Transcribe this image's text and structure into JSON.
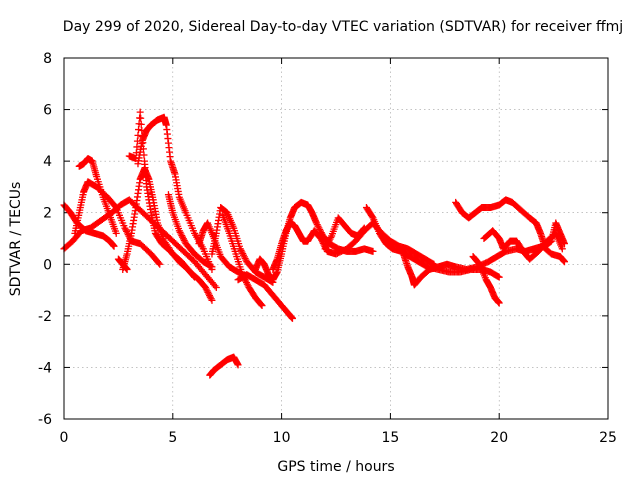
{
  "chart_data": {
    "type": "scatter",
    "title": "Day 299 of 2020, Sidereal Day-to-day VTEC variation (SDTVAR) for receiver ffmj",
    "xlabel": "GPS time / hours",
    "ylabel": "SDTVAR / TECUs",
    "xlim": [
      0,
      25
    ],
    "ylim": [
      -6,
      8
    ],
    "xticks": [
      0,
      5,
      10,
      15,
      20,
      25
    ],
    "yticks": [
      -6,
      -4,
      -2,
      0,
      2,
      4,
      6,
      8
    ],
    "xtick_labels": [
      "0",
      "5",
      "10",
      "15",
      "20",
      "25"
    ],
    "ytick_labels": [
      "-6",
      "-4",
      "-2",
      "0",
      "2",
      "4",
      "6",
      "8"
    ],
    "grid": true,
    "marker": "plus",
    "color": "#ff0000",
    "series": [
      {
        "name": "s1",
        "points": [
          [
            0.0,
            2.3
          ],
          [
            0.3,
            2.0
          ],
          [
            0.6,
            1.6
          ],
          [
            1.0,
            1.3
          ],
          [
            1.4,
            1.2
          ],
          [
            1.8,
            1.1
          ],
          [
            2.1,
            0.9
          ],
          [
            2.3,
            0.7
          ]
        ]
      },
      {
        "name": "s2",
        "points": [
          [
            0.0,
            0.6
          ],
          [
            0.4,
            0.9
          ],
          [
            0.8,
            1.3
          ],
          [
            1.2,
            1.4
          ],
          [
            1.7,
            1.7
          ],
          [
            2.2,
            2.0
          ],
          [
            2.6,
            2.3
          ],
          [
            3.0,
            2.5
          ],
          [
            3.5,
            2.1
          ],
          [
            4.0,
            1.7
          ],
          [
            4.5,
            1.3
          ],
          [
            5.0,
            0.9
          ],
          [
            5.5,
            0.5
          ],
          [
            6.0,
            0.1
          ],
          [
            6.5,
            -0.4
          ],
          [
            7.0,
            -0.9
          ]
        ]
      },
      {
        "name": "s3",
        "points": [
          [
            0.5,
            1.2
          ],
          [
            0.7,
            2.0
          ],
          [
            0.9,
            2.8
          ],
          [
            1.1,
            3.2
          ],
          [
            1.5,
            3.0
          ],
          [
            2.0,
            2.6
          ],
          [
            2.4,
            2.2
          ],
          [
            2.8,
            1.4
          ],
          [
            3.1,
            0.9
          ],
          [
            3.5,
            0.8
          ],
          [
            4.0,
            0.4
          ],
          [
            4.4,
            0.0
          ]
        ]
      },
      {
        "name": "s4",
        "points": [
          [
            0.7,
            3.8
          ],
          [
            0.9,
            3.9
          ],
          [
            1.1,
            4.1
          ],
          [
            1.3,
            4.0
          ],
          [
            1.5,
            3.4
          ],
          [
            1.8,
            2.6
          ],
          [
            2.1,
            1.9
          ],
          [
            2.4,
            1.2
          ]
        ]
      },
      {
        "name": "s5",
        "points": [
          [
            3.0,
            4.2
          ],
          [
            3.3,
            4.1
          ],
          [
            3.5,
            5.9
          ],
          [
            3.7,
            4.0
          ],
          [
            3.8,
            3.0
          ],
          [
            4.0,
            2.0
          ],
          [
            4.2,
            1.2
          ],
          [
            4.5,
            0.8
          ],
          [
            4.9,
            0.5
          ],
          [
            5.3,
            0.1
          ],
          [
            5.7,
            -0.2
          ],
          [
            6.0,
            -0.5
          ]
        ]
      },
      {
        "name": "s6",
        "points": [
          [
            3.4,
            3.9
          ],
          [
            3.6,
            4.8
          ],
          [
            3.8,
            5.2
          ],
          [
            4.0,
            5.4
          ],
          [
            4.3,
            5.6
          ],
          [
            4.6,
            5.7
          ],
          [
            4.7,
            5.4
          ],
          [
            4.9,
            4.0
          ],
          [
            5.1,
            3.5
          ],
          [
            5.3,
            2.6
          ],
          [
            5.6,
            2.0
          ],
          [
            6.0,
            1.2
          ],
          [
            6.4,
            0.6
          ],
          [
            6.8,
            -0.2
          ]
        ]
      },
      {
        "name": "s7",
        "points": [
          [
            2.7,
            -0.2
          ],
          [
            2.9,
            0.4
          ],
          [
            3.1,
            1.2
          ],
          [
            3.3,
            2.2
          ],
          [
            3.5,
            3.3
          ],
          [
            3.7,
            3.7
          ],
          [
            3.9,
            3.3
          ],
          [
            4.1,
            2.5
          ],
          [
            4.3,
            1.6
          ],
          [
            4.6,
            0.9
          ],
          [
            5.0,
            0.4
          ],
          [
            5.4,
            0.1
          ],
          [
            5.8,
            -0.3
          ],
          [
            6.2,
            -0.6
          ],
          [
            6.5,
            -0.9
          ],
          [
            6.8,
            -1.4
          ]
        ]
      },
      {
        "name": "s8",
        "points": [
          [
            4.8,
            2.7
          ],
          [
            5.0,
            2.0
          ],
          [
            5.3,
            1.3
          ],
          [
            5.6,
            0.8
          ],
          [
            6.0,
            0.4
          ],
          [
            6.4,
            0.1
          ],
          [
            6.8,
            -0.1
          ]
        ]
      },
      {
        "name": "s9",
        "points": [
          [
            6.7,
            -4.3
          ],
          [
            6.9,
            -4.1
          ],
          [
            7.2,
            -3.9
          ],
          [
            7.5,
            -3.7
          ],
          [
            7.8,
            -3.6
          ],
          [
            8.0,
            -3.9
          ]
        ]
      },
      {
        "name": "s10",
        "points": [
          [
            6.8,
            0.4
          ],
          [
            7.0,
            1.2
          ],
          [
            7.2,
            2.2
          ],
          [
            7.5,
            2.0
          ],
          [
            7.8,
            1.4
          ],
          [
            8.1,
            0.6
          ],
          [
            8.4,
            0.1
          ],
          [
            8.8,
            -0.3
          ],
          [
            9.2,
            -0.5
          ],
          [
            9.6,
            -0.7
          ]
        ]
      },
      {
        "name": "s11",
        "points": [
          [
            7.3,
            1.9
          ],
          [
            7.6,
            1.2
          ],
          [
            7.9,
            0.4
          ],
          [
            8.2,
            -0.4
          ],
          [
            8.5,
            -0.9
          ],
          [
            8.8,
            -1.3
          ],
          [
            9.1,
            -1.6
          ]
        ]
      },
      {
        "name": "s12",
        "points": [
          [
            6.2,
            0.8
          ],
          [
            6.4,
            1.3
          ],
          [
            6.6,
            1.6
          ],
          [
            6.9,
            1.0
          ],
          [
            7.2,
            0.3
          ],
          [
            7.6,
            -0.1
          ],
          [
            8.0,
            -0.3
          ],
          [
            8.4,
            -0.5
          ]
        ]
      },
      {
        "name": "s13",
        "points": [
          [
            8.0,
            -0.6
          ],
          [
            8.4,
            -0.4
          ],
          [
            8.8,
            -0.6
          ],
          [
            9.2,
            -0.8
          ],
          [
            9.6,
            -1.2
          ],
          [
            10.0,
            -1.6
          ],
          [
            10.3,
            -1.9
          ],
          [
            10.5,
            -2.1
          ]
        ]
      },
      {
        "name": "s14",
        "points": [
          [
            8.8,
            -0.2
          ],
          [
            9.0,
            0.2
          ],
          [
            9.2,
            0.0
          ],
          [
            9.4,
            -0.4
          ],
          [
            9.6,
            -0.6
          ],
          [
            9.8,
            -0.3
          ],
          [
            10.0,
            0.4
          ],
          [
            10.2,
            1.2
          ],
          [
            10.4,
            1.8
          ],
          [
            10.6,
            2.2
          ],
          [
            10.9,
            2.4
          ],
          [
            11.2,
            2.3
          ],
          [
            11.4,
            2.0
          ],
          [
            11.6,
            1.6
          ],
          [
            11.9,
            1.1
          ],
          [
            12.2,
            0.8
          ],
          [
            12.6,
            0.6
          ],
          [
            13.0,
            0.5
          ],
          [
            13.4,
            0.5
          ],
          [
            13.8,
            0.6
          ],
          [
            14.2,
            0.5
          ]
        ]
      },
      {
        "name": "s15",
        "points": [
          [
            9.6,
            -0.2
          ],
          [
            9.8,
            0.2
          ],
          [
            10.0,
            0.8
          ],
          [
            10.2,
            1.3
          ],
          [
            10.4,
            1.6
          ],
          [
            10.6,
            1.5
          ],
          [
            10.8,
            1.2
          ],
          [
            11.0,
            0.9
          ],
          [
            11.2,
            0.9
          ],
          [
            11.5,
            1.3
          ],
          [
            11.8,
            1.0
          ],
          [
            12.1,
            0.5
          ],
          [
            12.5,
            0.4
          ],
          [
            13.0,
            0.6
          ],
          [
            13.4,
            0.9
          ],
          [
            13.8,
            1.3
          ],
          [
            14.2,
            1.6
          ],
          [
            14.6,
            1.2
          ],
          [
            15.0,
            0.9
          ],
          [
            15.4,
            0.7
          ],
          [
            15.8,
            0.6
          ],
          [
            16.2,
            0.4
          ],
          [
            16.6,
            0.2
          ],
          [
            17.0,
            0.0
          ]
        ]
      },
      {
        "name": "s16",
        "points": [
          [
            12.0,
            0.6
          ],
          [
            12.3,
            1.1
          ],
          [
            12.6,
            1.8
          ],
          [
            12.9,
            1.5
          ],
          [
            13.2,
            1.2
          ],
          [
            13.5,
            1.1
          ],
          [
            13.8,
            1.4
          ]
        ]
      },
      {
        "name": "s17",
        "points": [
          [
            13.9,
            2.2
          ],
          [
            14.2,
            1.8
          ],
          [
            14.5,
            1.2
          ],
          [
            14.8,
            0.8
          ],
          [
            15.1,
            0.6
          ],
          [
            15.5,
            0.5
          ],
          [
            15.9,
            0.3
          ],
          [
            16.3,
            0.1
          ],
          [
            16.7,
            -0.1
          ],
          [
            17.2,
            -0.2
          ],
          [
            17.7,
            -0.3
          ],
          [
            18.2,
            -0.3
          ],
          [
            18.7,
            -0.2
          ],
          [
            19.2,
            -0.2
          ],
          [
            19.6,
            -0.3
          ],
          [
            20.0,
            -0.5
          ]
        ]
      },
      {
        "name": "s18",
        "points": [
          [
            15.6,
            0.4
          ],
          [
            15.8,
            -0.1
          ],
          [
            16.0,
            -0.5
          ],
          [
            16.1,
            -0.8
          ],
          [
            16.4,
            -0.5
          ],
          [
            16.8,
            -0.2
          ],
          [
            17.2,
            -0.1
          ],
          [
            17.6,
            0.0
          ],
          [
            18.0,
            -0.1
          ],
          [
            18.5,
            -0.2
          ],
          [
            19.0,
            -0.1
          ],
          [
            19.5,
            0.1
          ],
          [
            19.9,
            0.3
          ],
          [
            20.3,
            0.5
          ],
          [
            20.8,
            0.6
          ],
          [
            21.2,
            0.5
          ],
          [
            21.6,
            0.6
          ],
          [
            22.0,
            0.7
          ],
          [
            22.4,
            0.4
          ],
          [
            22.8,
            0.3
          ],
          [
            23.0,
            0.1
          ]
        ]
      },
      {
        "name": "s19",
        "points": [
          [
            18.0,
            2.4
          ],
          [
            18.3,
            2.0
          ],
          [
            18.6,
            1.8
          ],
          [
            18.9,
            2.0
          ],
          [
            19.2,
            2.2
          ],
          [
            19.6,
            2.2
          ],
          [
            20.0,
            2.3
          ],
          [
            20.3,
            2.5
          ],
          [
            20.6,
            2.4
          ],
          [
            21.0,
            2.1
          ],
          [
            21.4,
            1.8
          ],
          [
            21.7,
            1.6
          ],
          [
            21.9,
            1.2
          ],
          [
            22.1,
            0.7
          ],
          [
            22.4,
            0.9
          ],
          [
            22.6,
            1.6
          ],
          [
            22.8,
            1.2
          ],
          [
            23.0,
            0.8
          ]
        ]
      },
      {
        "name": "s20",
        "points": [
          [
            19.3,
            1.0
          ],
          [
            19.7,
            1.3
          ],
          [
            20.0,
            1.0
          ],
          [
            20.2,
            0.6
          ],
          [
            20.5,
            0.9
          ],
          [
            20.8,
            0.9
          ],
          [
            21.1,
            0.5
          ],
          [
            21.4,
            0.2
          ],
          [
            21.8,
            0.5
          ],
          [
            22.2,
            0.9
          ],
          [
            22.6,
            1.2
          ],
          [
            22.9,
            0.6
          ]
        ]
      },
      {
        "name": "s21",
        "points": [
          [
            18.8,
            0.3
          ],
          [
            19.1,
            0.0
          ],
          [
            19.4,
            -0.6
          ],
          [
            19.6,
            -0.9
          ],
          [
            19.8,
            -1.3
          ],
          [
            20.0,
            -1.5
          ]
        ]
      },
      {
        "name": "s22",
        "points": [
          [
            2.5,
            0.2
          ],
          [
            2.7,
            0.0
          ],
          [
            2.9,
            -0.2
          ]
        ]
      }
    ]
  }
}
